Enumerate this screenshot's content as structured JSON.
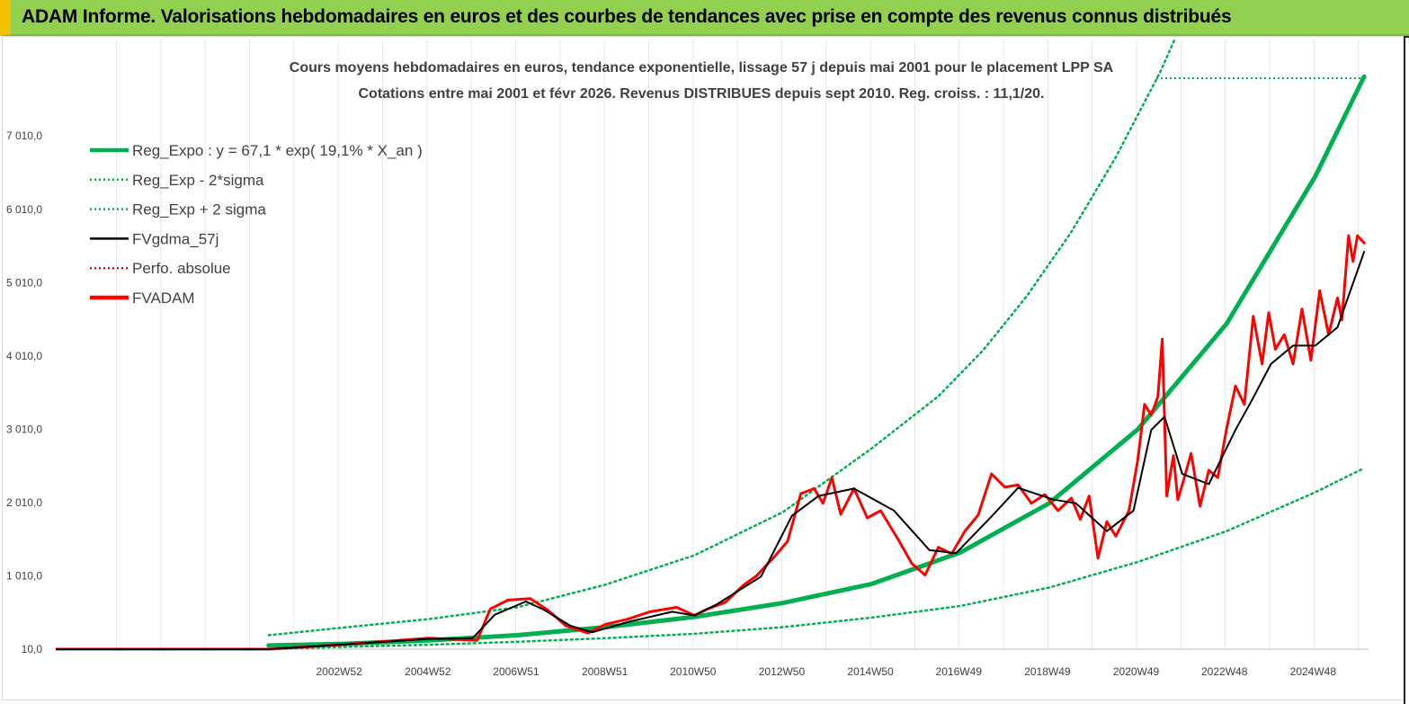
{
  "header": {
    "title": "ADAM Informe. Valorisations hebdomadaires en euros et des courbes de tendances avec prise en compte des revenus connus distribués",
    "background": "#92d050"
  },
  "chart_data": {
    "type": "line",
    "title": "Cours moyens hebdomadaires en euros, tendance exponentielle, lissage 57 j depuis mai 2001 pour le placement LPP SA",
    "subtitle": "Cotations entre mai 2001 et févr 2026. Revenus DISTRIBUES depuis sept 2010. Reg. croiss. : 11,1/20.",
    "xlabel": "",
    "ylabel": "",
    "x_range": [
      1996.6,
      2026.2
    ],
    "ylim": [
      10,
      7810
    ],
    "y_ticks": [
      "10,0",
      "1 010,0",
      "2 010,0",
      "3 010,0",
      "4 010,0",
      "5 010,0",
      "6 010,0",
      "7 010,0"
    ],
    "y_tick_values": [
      10,
      1010,
      2010,
      3010,
      4010,
      5010,
      6010,
      7010
    ],
    "x_ticks": [
      "2002W52",
      "2004W52",
      "2006W51",
      "2008W51",
      "2010W50",
      "2012W50",
      "2014W50",
      "2016W49",
      "2018W49",
      "2020W49",
      "2022W48",
      "2024W48"
    ],
    "x_tick_values": [
      2002.99,
      2004.99,
      2006.98,
      2008.98,
      2010.97,
      2012.97,
      2014.97,
      2016.96,
      2018.96,
      2020.96,
      2022.95,
      2024.95
    ],
    "grid": "vertical",
    "legend_position": "top-left",
    "legend": [
      {
        "key": "reg_expo",
        "label": "Reg_Expo : y = 67,1 * exp( 19,1% *  X_an )",
        "color": "#00b050",
        "style": "solid-thick"
      },
      {
        "key": "reg_minus",
        "label": "Reg_Exp - 2*sigma",
        "color": "#00b050",
        "style": "dotted"
      },
      {
        "key": "reg_plus",
        "label": "Reg_Exp + 2 sigma",
        "color": "#00b050",
        "style": "dotted"
      },
      {
        "key": "fvgdma",
        "label": "FVgdma_57j",
        "color": "#000000",
        "style": "solid"
      },
      {
        "key": "perfo",
        "label": "Perfo. absolue",
        "color": "#ff0000",
        "style": "dotted"
      },
      {
        "key": "fvadam",
        "label": "FVADAM",
        "color": "#ff0000",
        "style": "solid-thick"
      }
    ],
    "series": [
      {
        "key": "reg_expo",
        "x": [
          2001.4,
          2003,
          2005,
          2007,
          2009,
          2011,
          2013,
          2015,
          2017,
          2019,
          2021,
          2023,
          2025,
          2026.1
        ],
        "values": [
          60,
          80,
          130,
          200,
          310,
          450,
          640,
          900,
          1330,
          2000,
          3010,
          4450,
          6460,
          7820
        ]
      },
      {
        "key": "reg_minus",
        "x": [
          2001.4,
          2003,
          2005,
          2007,
          2009,
          2011,
          2013,
          2015,
          2017,
          2019,
          2021,
          2023,
          2025,
          2026.1
        ],
        "values": [
          10,
          40,
          70,
          110,
          160,
          220,
          310,
          440,
          600,
          850,
          1200,
          1620,
          2150,
          2480
        ]
      },
      {
        "key": "reg_plus",
        "x": [
          2001.4,
          2003,
          2005,
          2007,
          2009,
          2011,
          2013,
          2015,
          2016.5,
          2017.5,
          2018.5,
          2019.5,
          2020.5,
          2021.5,
          2022.5
        ],
        "values": [
          200,
          300,
          420,
          580,
          890,
          1290,
          1880,
          2750,
          3460,
          4080,
          4830,
          5700,
          6720,
          7880,
          9240
        ]
      },
      {
        "key": "fvgdma",
        "x": [
          1996.6,
          2001.4,
          2003,
          2005,
          2006,
          2006.5,
          2007.2,
          2007.6,
          2008.2,
          2008.7,
          2009.5,
          2010.5,
          2011.0,
          2011.5,
          2012.5,
          2013.2,
          2013.8,
          2014.6,
          2015.5,
          2016.3,
          2016.9,
          2017.7,
          2018.3,
          2019.1,
          2019.6,
          2020.3,
          2020.9,
          2021.3,
          2021.6,
          2022.0,
          2022.6,
          2023.2,
          2023.6,
          2024.0,
          2024.5,
          2025.0,
          2025.5,
          2026.1
        ],
        "values": [
          10,
          10,
          70,
          150,
          160,
          480,
          660,
          550,
          330,
          240,
          380,
          520,
          470,
          620,
          1000,
          1830,
          2100,
          2200,
          1900,
          1360,
          1320,
          1820,
          2210,
          2050,
          2000,
          1620,
          1900,
          3000,
          3180,
          2400,
          2260,
          3000,
          3440,
          3900,
          4150,
          4150,
          4400,
          5430
        ]
      },
      {
        "key": "fvadam",
        "x": [
          1996.6,
          2001.4,
          2003,
          2005,
          2006.1,
          2006.4,
          2006.8,
          2007.3,
          2007.7,
          2008.1,
          2008.6,
          2009.0,
          2009.5,
          2010.0,
          2010.6,
          2011.0,
          2011.3,
          2011.7,
          2012.1,
          2012.4,
          2012.8,
          2013.1,
          2013.4,
          2013.7,
          2013.9,
          2014.1,
          2014.3,
          2014.6,
          2014.9,
          2015.2,
          2015.6,
          2015.9,
          2016.2,
          2016.5,
          2016.8,
          2017.1,
          2017.4,
          2017.7,
          2018.0,
          2018.3,
          2018.6,
          2018.9,
          2019.2,
          2019.5,
          2019.7,
          2019.9,
          2020.1,
          2020.3,
          2020.5,
          2020.8,
          2021.0,
          2021.15,
          2021.3,
          2021.45,
          2021.55,
          2021.65,
          2021.8,
          2021.9,
          2022.0,
          2022.2,
          2022.4,
          2022.6,
          2022.8,
          2023.0,
          2023.2,
          2023.4,
          2023.6,
          2023.8,
          2023.95,
          2024.1,
          2024.3,
          2024.5,
          2024.7,
          2024.9,
          2025.1,
          2025.3,
          2025.5,
          2025.6,
          2025.75,
          2025.85,
          2025.95,
          2026.1
        ],
        "values": [
          10,
          10,
          70,
          160,
          130,
          560,
          680,
          700,
          540,
          330,
          230,
          350,
          420,
          520,
          580,
          470,
          560,
          650,
          880,
          1010,
          1270,
          1480,
          2130,
          2200,
          2000,
          2350,
          1850,
          2200,
          1800,
          1900,
          1500,
          1180,
          1020,
          1400,
          1310,
          1620,
          1840,
          2400,
          2220,
          2250,
          2000,
          2120,
          1900,
          2070,
          1780,
          2100,
          1250,
          1750,
          1550,
          1900,
          2600,
          3350,
          3200,
          3450,
          4240,
          2100,
          2650,
          2050,
          2250,
          2680,
          1960,
          2450,
          2350,
          3020,
          3600,
          3350,
          4550,
          3900,
          4600,
          4100,
          4300,
          3900,
          4650,
          3950,
          4900,
          4300,
          4800,
          4500,
          5650,
          5300,
          5650,
          5550
        ]
      }
    ]
  }
}
